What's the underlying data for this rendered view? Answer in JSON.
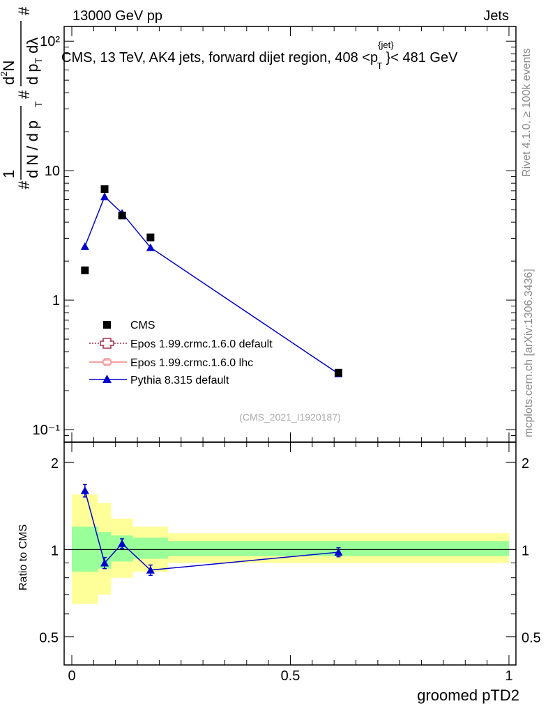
{
  "header": {
    "left": "13000 GeV pp",
    "right": "Jets"
  },
  "title": "CMS, 13 TeV, AK4 jets, forward dijet region, 408 <p_T^{jet}< 481 GeV",
  "title_parts": {
    "a": "CMS, 13 TeV, AK4 jets, forward dijet region, 408 <p",
    "sup": "{jet}",
    "sub": "T",
    "b": "}< 481 GeV"
  },
  "side_labels": {
    "rivet": "Rivet 4.1.0, ≥ 100k events",
    "mcplots": "mcplots.cern.ch [arXiv:1306.3436]"
  },
  "watermark": "(CMS_2021_I1920187)",
  "ylabel_upper": "1/(dN/dp_T) d²N/(dp_T dλ)",
  "ylabel_upper_parts": {
    "hash1": "#",
    "one": "1",
    "dn": "d N / d p",
    "hash2": "#",
    "num": "d",
    "num_sup": "2",
    "num_N": "N",
    "den": "d p",
    "den2": "d",
    "lam": "λ",
    "T": "T",
    "hash3": "#"
  },
  "colors": {
    "data": "#000000",
    "pythia": "#0000cc",
    "epos_default": "#a0304a",
    "epos_lhc": "#f08080",
    "band_outer": "#ffff99",
    "band_inner": "#99ff99"
  },
  "chart_data": [
    {
      "type": "scatter",
      "panel": "main",
      "yscale": "log",
      "ylim": [
        0.08,
        130
      ],
      "xlim": [
        -0.02,
        1.0
      ],
      "yticks": [
        {
          "label": "10⁻¹",
          "value": 0.1
        },
        {
          "label": "1",
          "value": 1
        },
        {
          "label": "10",
          "value": 10
        },
        {
          "label": "10²",
          "value": 100
        }
      ],
      "series": [
        {
          "name": "CMS",
          "style": "square",
          "x": [
            0.03,
            0.075,
            0.115,
            0.18,
            0.61
          ],
          "y": [
            1.7,
            7.2,
            4.5,
            3.05,
            0.275
          ]
        },
        {
          "name": "Epos 1.99.crmc.1.6.0 default",
          "style": "open-cross-dotted",
          "x": [],
          "y": []
        },
        {
          "name": "Epos 1.99.crmc.1.6.0 lhc",
          "style": "cross-line",
          "x": [],
          "y": []
        },
        {
          "name": "Pythia 8.315 default",
          "style": "triangle-line",
          "x": [
            0.03,
            0.075,
            0.115,
            0.18,
            0.61
          ],
          "y": [
            2.6,
            6.3,
            4.7,
            2.55,
            0.27
          ],
          "yerr": [
            0.15,
            0.3,
            0.25,
            0.12,
            0.015
          ]
        }
      ]
    },
    {
      "type": "line",
      "panel": "ratio",
      "ylabel": "Ratio to CMS",
      "xlabel": "groomed pTD2",
      "ylim": [
        0.4,
        2.35
      ],
      "yscale": "log",
      "yticks": [
        {
          "label": "0.5",
          "value": 0.5
        },
        {
          "label": "1",
          "value": 1
        },
        {
          "label": "2",
          "value": 2
        }
      ],
      "xticks": [
        {
          "label": "0",
          "value": 0
        },
        {
          "label": "0.5",
          "value": 0.5
        },
        {
          "label": "1",
          "value": 1
        }
      ],
      "bands": [
        {
          "x0": 0.0,
          "x1": 0.06,
          "outer": [
            0.65,
            1.55
          ],
          "inner": [
            0.84,
            1.2
          ]
        },
        {
          "x0": 0.06,
          "x1": 0.09,
          "outer": [
            0.7,
            1.45
          ],
          "inner": [
            0.86,
            1.15
          ]
        },
        {
          "x0": 0.09,
          "x1": 0.14,
          "outer": [
            0.8,
            1.28
          ],
          "inner": [
            0.91,
            1.12
          ]
        },
        {
          "x0": 0.14,
          "x1": 0.22,
          "outer": [
            0.84,
            1.2
          ],
          "inner": [
            0.93,
            1.1
          ]
        },
        {
          "x0": 0.22,
          "x1": 1.0,
          "outer": [
            0.9,
            1.14
          ],
          "inner": [
            0.95,
            1.07
          ]
        }
      ],
      "series": [
        {
          "name": "Pythia 8.315 default",
          "x": [
            0.03,
            0.075,
            0.115,
            0.18,
            0.61
          ],
          "y": [
            1.6,
            0.9,
            1.05,
            0.85,
            0.98
          ],
          "yerr": [
            0.08,
            0.04,
            0.04,
            0.035,
            0.035
          ]
        }
      ]
    }
  ]
}
